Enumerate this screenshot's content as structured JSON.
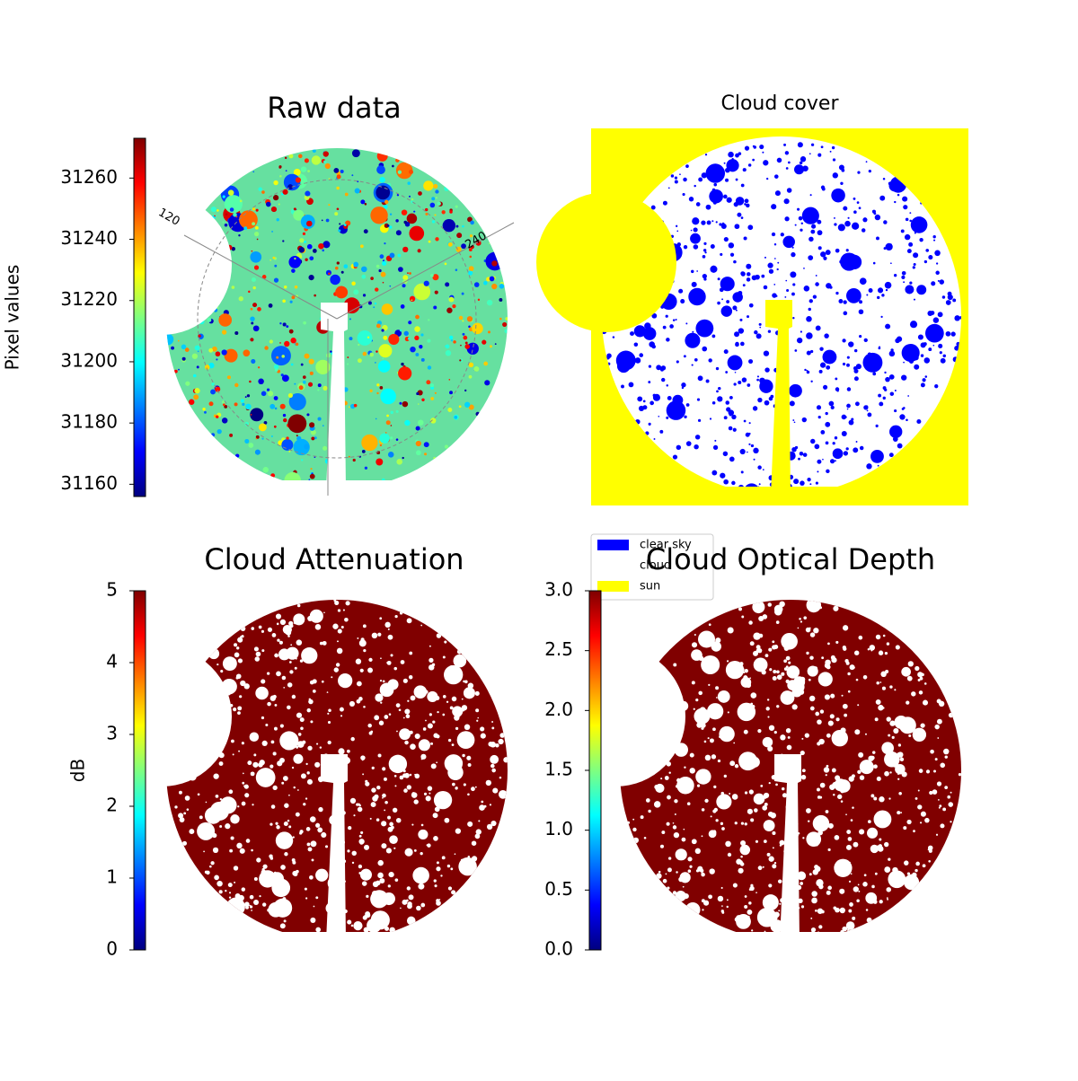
{
  "chart_data": [
    {
      "type": "image",
      "title": "Raw data",
      "colormap": "jet",
      "colorbar": {
        "label": "Pixel values",
        "lim": [
          31156,
          31273
        ],
        "ticks": [
          31160,
          31180,
          31200,
          31220,
          31240,
          31260
        ]
      },
      "annotations": [
        "120",
        "240"
      ]
    },
    {
      "type": "categorical-image",
      "title": "Cloud cover",
      "series": [
        {
          "name": "clear sky",
          "color": "#0000ff"
        },
        {
          "name": "cloud",
          "color": "#ffffff"
        },
        {
          "name": "sun",
          "color": "#ffff00"
        }
      ]
    },
    {
      "type": "image",
      "title": "Cloud Attenuation",
      "colormap": "jet",
      "colorbar": {
        "label": "dB",
        "lim": [
          0,
          5
        ],
        "ticks": [
          0,
          1,
          2,
          3,
          4,
          5
        ]
      }
    },
    {
      "type": "image",
      "title": "Cloud Optical Depth",
      "colormap": "jet",
      "colorbar": {
        "lim": [
          0,
          3
        ],
        "ticks": [
          {
            "value": 0,
            "label": "0.0"
          },
          0.5,
          {
            "value": 1,
            "label": "1.0"
          },
          1.5,
          {
            "value": 2,
            "label": "2.0"
          },
          2.5,
          {
            "value": 3,
            "label": "3.0"
          }
        ]
      }
    }
  ]
}
